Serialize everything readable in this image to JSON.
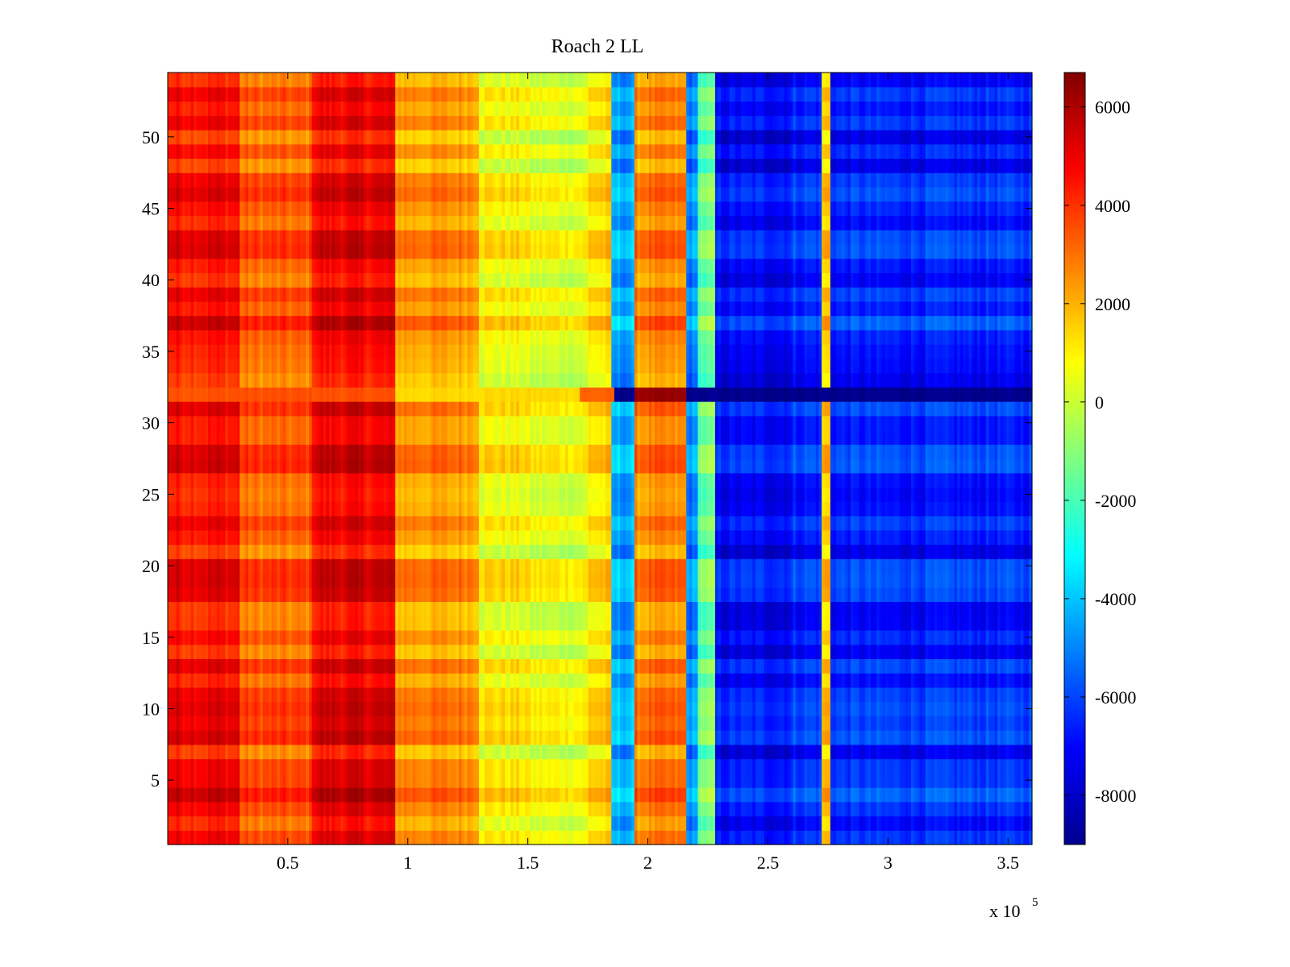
{
  "chart_data": {
    "type": "heatmap",
    "title": "Roach 2 LL",
    "xlabel": "",
    "ylabel": "",
    "x_scale_label": "x 10",
    "x_scale_exponent": "5",
    "xlim": [
      0,
      3.6
    ],
    "ylim": [
      0.5,
      54.5
    ],
    "x_ticks": [
      0.5,
      1,
      1.5,
      2,
      2.5,
      3,
      3.5
    ],
    "x_tick_labels": [
      "0.5",
      "1",
      "1.5",
      "2",
      "2.5",
      "3",
      "3.5"
    ],
    "y_ticks": [
      5,
      10,
      15,
      20,
      25,
      30,
      35,
      40,
      45,
      50
    ],
    "y_tick_labels": [
      "5",
      "10",
      "15",
      "20",
      "25",
      "30",
      "35",
      "40",
      "45",
      "50"
    ],
    "rows": 54,
    "colorbar": {
      "colormap": "jet",
      "range": [
        -9000,
        6700
      ],
      "ticks": [
        -8000,
        -6000,
        -4000,
        -2000,
        0,
        2000,
        4000,
        6000
      ],
      "tick_labels": [
        "-8000",
        "-6000",
        "-4000",
        "-2000",
        "0",
        "2000",
        "4000",
        "6000"
      ]
    },
    "column_bands": [
      {
        "x_start": 0.0,
        "x_end": 0.3,
        "value": 4600
      },
      {
        "x_start": 0.3,
        "x_end": 0.6,
        "value": 3200
      },
      {
        "x_start": 0.6,
        "x_end": 0.95,
        "value": 4900
      },
      {
        "x_start": 0.95,
        "x_end": 1.3,
        "value": 2400
      },
      {
        "x_start": 1.3,
        "x_end": 1.5,
        "value": 800
      },
      {
        "x_start": 1.5,
        "x_end": 1.75,
        "value": 400
      },
      {
        "x_start": 1.75,
        "x_end": 1.85,
        "value": 1200
      },
      {
        "x_start": 1.85,
        "x_end": 1.95,
        "value": -4500
      },
      {
        "x_start": 1.95,
        "x_end": 2.16,
        "value": 2600
      },
      {
        "x_start": 2.16,
        "x_end": 2.21,
        "value": -5000
      },
      {
        "x_start": 2.21,
        "x_end": 2.28,
        "value": -1500
      },
      {
        "x_start": 2.28,
        "x_end": 2.6,
        "value": -7000
      },
      {
        "x_start": 2.6,
        "x_end": 2.73,
        "value": -6500
      },
      {
        "x_start": 2.73,
        "x_end": 2.76,
        "value": 1500
      },
      {
        "x_start": 2.76,
        "x_end": 3.6,
        "value": -6600
      }
    ],
    "row_32_band": [
      {
        "x_start": 0.0,
        "x_end": 0.95,
        "value": 3500
      },
      {
        "x_start": 0.95,
        "x_end": 1.72,
        "value": 1400
      },
      {
        "x_start": 1.72,
        "x_end": 1.86,
        "value": 3200
      },
      {
        "x_start": 1.86,
        "x_end": 1.95,
        "value": -8800
      },
      {
        "x_start": 1.95,
        "x_end": 2.16,
        "value": 6300
      },
      {
        "x_start": 2.16,
        "x_end": 3.6,
        "value": -8800
      }
    ]
  }
}
